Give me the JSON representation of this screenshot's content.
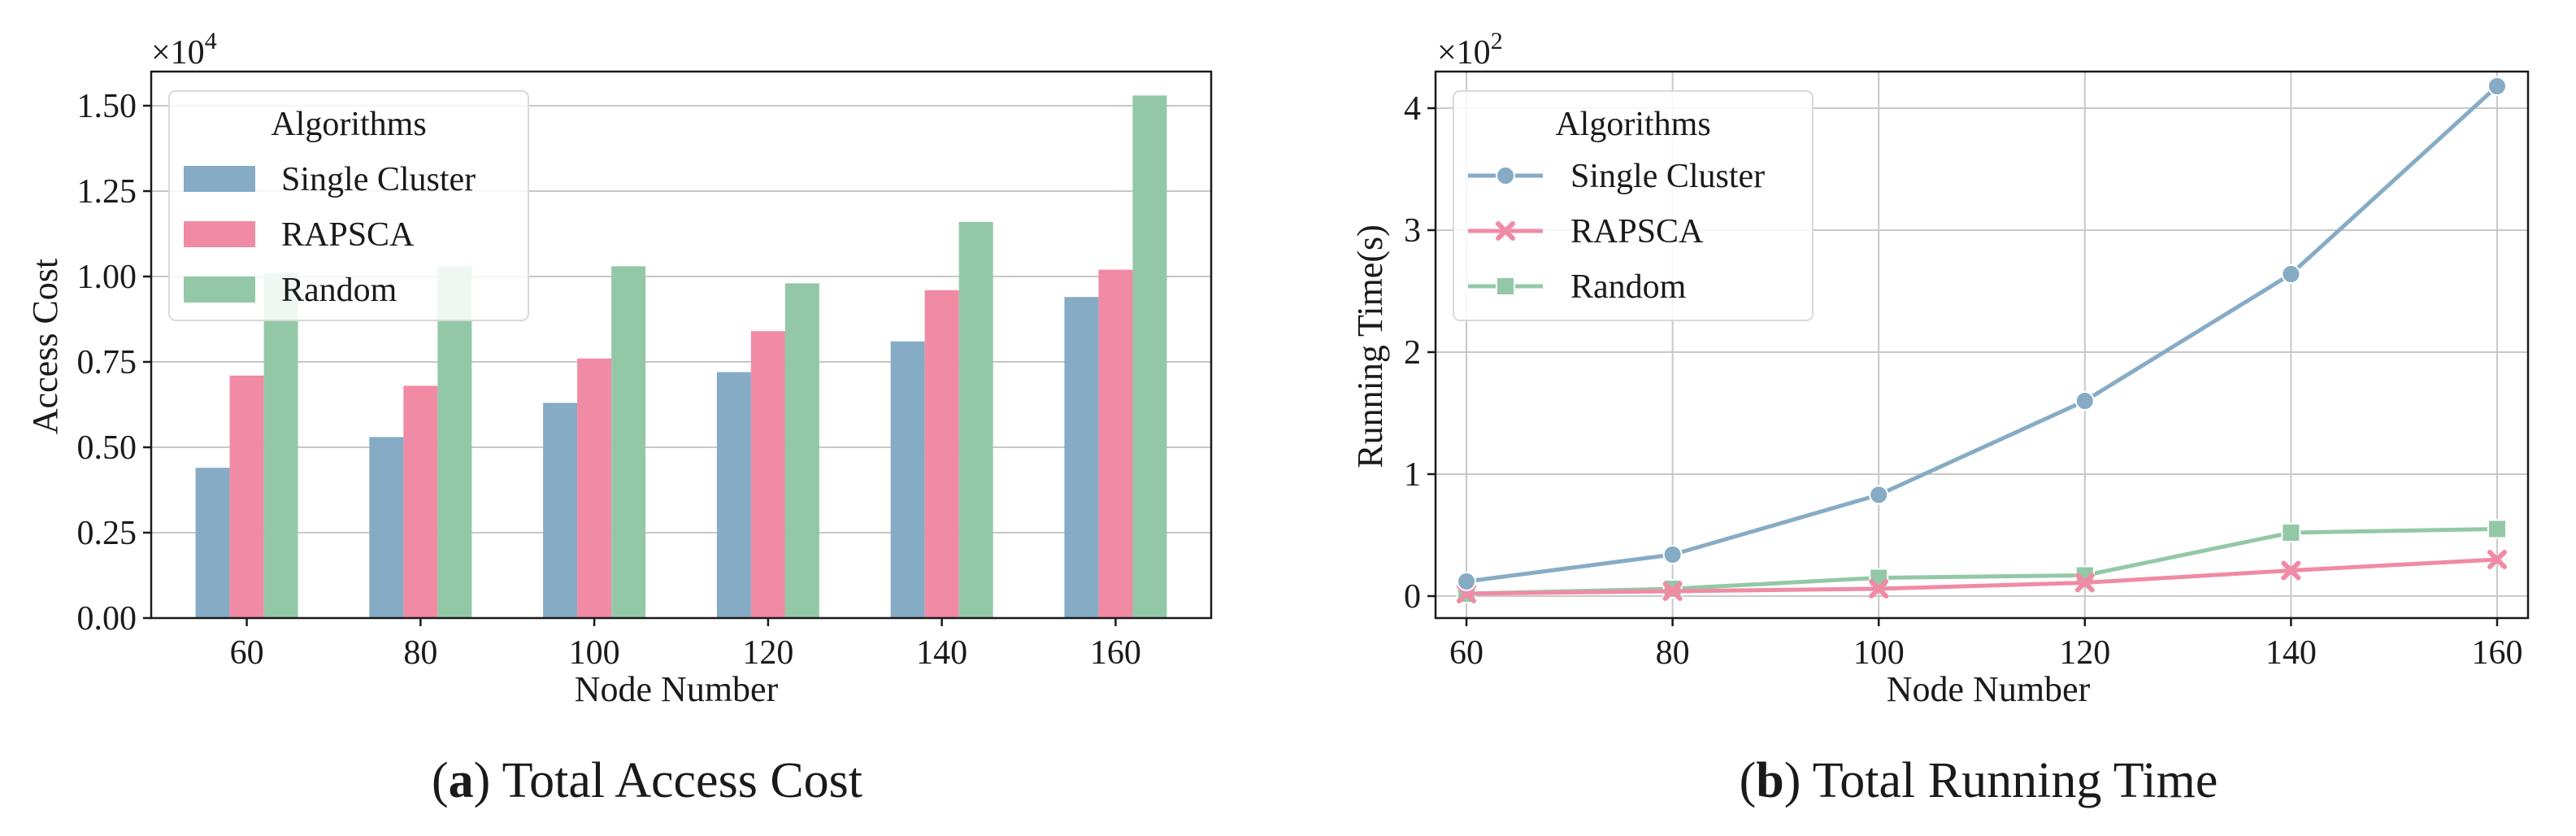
{
  "panels": [
    {
      "caption_letter": "a",
      "caption_text": "Total Access Cost",
      "multiplier_base": "×10",
      "multiplier_exp": "4"
    },
    {
      "caption_letter": "b",
      "caption_text": "Total Running Time",
      "multiplier_base": "×10",
      "multiplier_exp": "2"
    }
  ],
  "colors": {
    "single_cluster": "#86abc5",
    "rapsca": "#f08aa5",
    "random": "#93c8a7",
    "grid": "#c8c8c8",
    "axis": "#1a1a1a"
  },
  "chart_data": [
    {
      "type": "bar",
      "title": "",
      "xlabel": "Node Number",
      "ylabel": "Access Cost",
      "categories": [
        "60",
        "80",
        "100",
        "120",
        "140",
        "160"
      ],
      "ylim": [
        0,
        1.6
      ],
      "yticks": [
        "0.00",
        "0.25",
        "0.50",
        "0.75",
        "1.00",
        "1.25",
        "1.50"
      ],
      "ytick_values": [
        0,
        0.25,
        0.5,
        0.75,
        1.0,
        1.25,
        1.5
      ],
      "y_multiplier": "×10^4",
      "grid": "y",
      "legend_title": "Algorithms",
      "legend_position": "top-left",
      "series": [
        {
          "name": "Single Cluster",
          "values": [
            0.44,
            0.53,
            0.63,
            0.72,
            0.81,
            0.94
          ]
        },
        {
          "name": "RAPSCA",
          "values": [
            0.71,
            0.68,
            0.76,
            0.84,
            0.96,
            1.02
          ]
        },
        {
          "name": "Random",
          "values": [
            1.01,
            1.03,
            1.03,
            0.98,
            1.16,
            1.53
          ]
        }
      ]
    },
    {
      "type": "line",
      "title": "",
      "xlabel": "Node Number",
      "ylabel": "Running Time(s)",
      "x": [
        60,
        80,
        100,
        120,
        140,
        160
      ],
      "xticks": [
        "60",
        "80",
        "100",
        "120",
        "140",
        "160"
      ],
      "xlim": [
        57,
        163
      ],
      "ylim": [
        -0.18,
        4.3
      ],
      "yticks": [
        "0",
        "1",
        "2",
        "3",
        "4"
      ],
      "ytick_values": [
        0,
        1,
        2,
        3,
        4
      ],
      "y_multiplier": "×10^2",
      "grid": "both",
      "legend_title": "Algorithms",
      "legend_position": "top-left",
      "series": [
        {
          "name": "Single Cluster",
          "marker": "circle",
          "values": [
            0.12,
            0.34,
            0.83,
            1.6,
            2.64,
            4.18
          ]
        },
        {
          "name": "RAPSCA",
          "marker": "x",
          "values": [
            0.02,
            0.04,
            0.06,
            0.11,
            0.21,
            0.3
          ]
        },
        {
          "name": "Random",
          "marker": "square",
          "values": [
            0.02,
            0.06,
            0.15,
            0.17,
            0.52,
            0.55
          ]
        }
      ]
    }
  ]
}
